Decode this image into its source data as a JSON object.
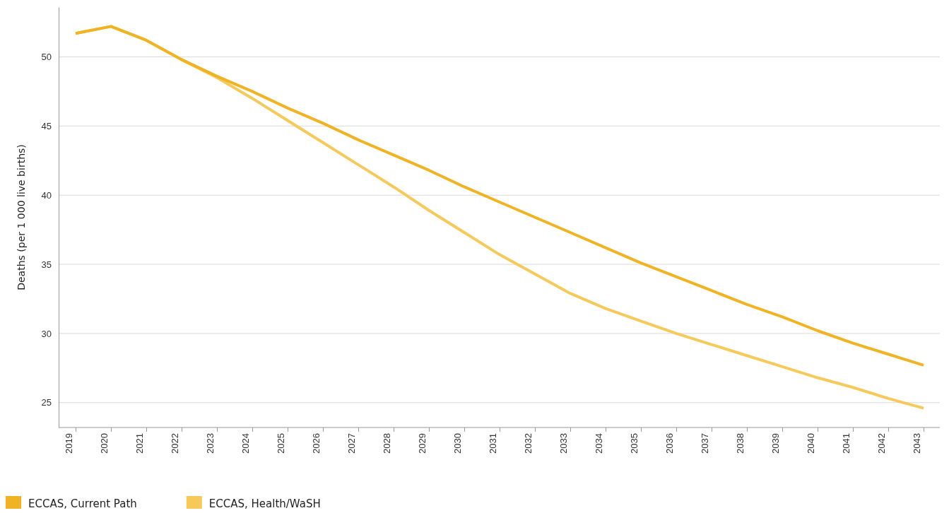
{
  "chart_data": {
    "type": "line",
    "ylabel": "Deaths (per 1 000 live births)",
    "categories": [
      "2019",
      "2020",
      "2021",
      "2022",
      "2023",
      "2024",
      "2025",
      "2026",
      "2027",
      "2028",
      "2029",
      "2030",
      "2031",
      "2032",
      "2033",
      "2034",
      "2035",
      "2036",
      "2037",
      "2038",
      "2039",
      "2040",
      "2041",
      "2042",
      "2043"
    ],
    "series": [
      {
        "name": "ECCAS, Current Path",
        "color": "#f0b323",
        "values": [
          51.7,
          52.2,
          51.2,
          49.8,
          48.6,
          47.5,
          46.3,
          45.2,
          44.0,
          42.9,
          41.8,
          40.6,
          39.5,
          38.4,
          37.3,
          36.2,
          35.1,
          34.1,
          33.1,
          32.1,
          31.2,
          30.2,
          29.3,
          28.5,
          27.7
        ]
      },
      {
        "name": "ECCAS, Health/WaSH",
        "color": "#f5c95a",
        "values": [
          51.7,
          52.2,
          51.2,
          49.8,
          48.5,
          47.0,
          45.4,
          43.8,
          42.2,
          40.6,
          38.9,
          37.3,
          35.7,
          34.3,
          32.9,
          31.8,
          30.9,
          30.0,
          29.2,
          28.4,
          27.6,
          26.8,
          26.1,
          25.3,
          24.6
        ]
      }
    ],
    "ylim": [
      23.2,
      53.6
    ],
    "yticks": [
      25,
      30,
      35,
      40,
      45,
      50
    ],
    "grid": "y",
    "legend": "bottom left",
    "marker": "none",
    "line_style": "solid"
  }
}
